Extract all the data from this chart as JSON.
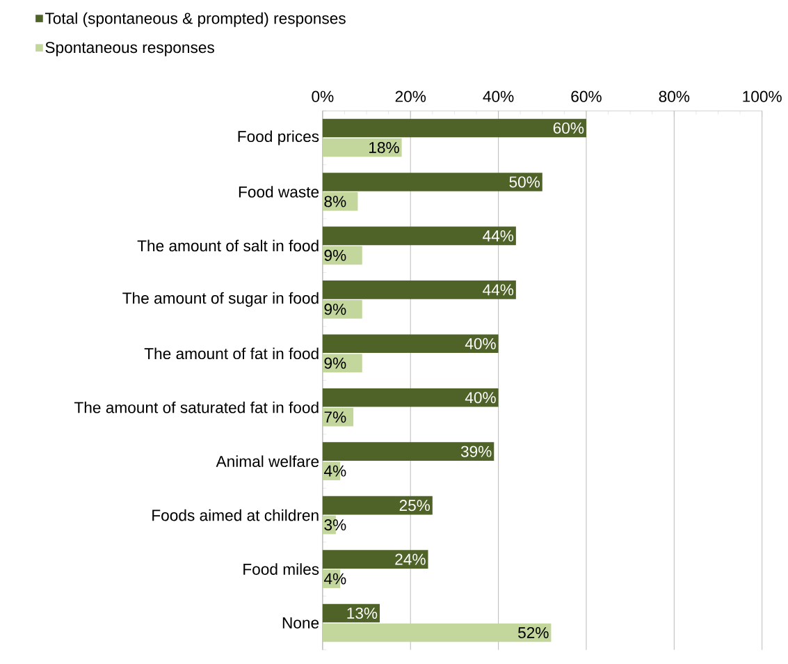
{
  "chart_data": {
    "type": "bar",
    "orientation": "horizontal",
    "categories": [
      "Food prices",
      "Food waste",
      "The amount of salt in food",
      "The amount of sugar in food",
      "The amount of fat in food",
      "The amount of saturated fat in food",
      "Animal welfare",
      "Foods aimed at children",
      "Food miles",
      "None"
    ],
    "series": [
      {
        "name": "Total (spontaneous & prompted) responses",
        "color": "#4f6228",
        "values": [
          60,
          50,
          44,
          44,
          40,
          40,
          39,
          25,
          24,
          13
        ],
        "value_labels": [
          "60%",
          "50%",
          "44%",
          "44%",
          "40%",
          "40%",
          "39%",
          "25%",
          "24%",
          "13%"
        ]
      },
      {
        "name": "Spontaneous responses",
        "color": "#c3d69b",
        "values": [
          18,
          8,
          9,
          9,
          9,
          7,
          4,
          3,
          4,
          52
        ],
        "value_labels": [
          "18%",
          "8%",
          "9%",
          "9%",
          "9%",
          "7%",
          "4%",
          "3%",
          "4%",
          "52%"
        ]
      }
    ],
    "xlim": [
      0,
      100
    ],
    "xticks": [
      {
        "value": 0,
        "label": "0%"
      },
      {
        "value": 20,
        "label": "20%"
      },
      {
        "value": 40,
        "label": "40%"
      },
      {
        "value": 60,
        "label": "60%"
      },
      {
        "value": 80,
        "label": "80%"
      },
      {
        "value": 100,
        "label": "100%"
      }
    ],
    "grid": "x",
    "legend": "top left"
  }
}
